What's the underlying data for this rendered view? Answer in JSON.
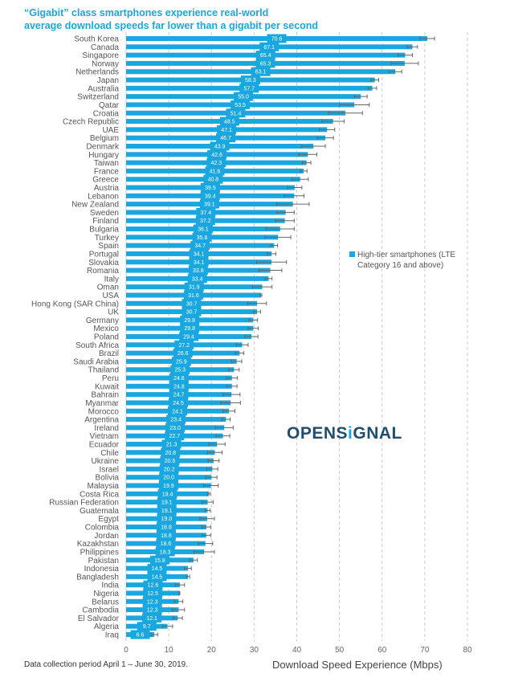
{
  "chart_data": {
    "type": "bar",
    "orientation": "horizontal",
    "title": "“Gigabit” class smartphones experience real-world average download speeds far lower than a gigabit per second",
    "title_lines": [
      "“Gigabit” class smartphones experience real-world",
      "average download speeds far lower than a gigabit per second"
    ],
    "xlabel": "Download Speed Experience (Mbps)",
    "xlim": [
      0,
      80
    ],
    "xticks": [
      0,
      10,
      20,
      30,
      40,
      50,
      60,
      70,
      80
    ],
    "grid": true,
    "legend": {
      "position": "right",
      "entries": [
        "High-tier smartphones (LTE Category 16 and above)"
      ],
      "lines": [
        "High-tier smartphones (LTE",
        "Category 16 and above)"
      ]
    },
    "series": [
      {
        "name": "High-tier smartphones (LTE Category 16 and above)",
        "color": "#1aa7e0"
      }
    ],
    "categories": [
      "South Korea",
      "Canada",
      "Singapore",
      "Norway",
      "Netherlands",
      "Japan",
      "Australia",
      "Switzerland",
      "Qatar",
      "Croatia",
      "Czech Republic",
      "UAE",
      "Belgium",
      "Denmark",
      "Hungary",
      "Taiwan",
      "France",
      "Greece",
      "Austria",
      "Lebanon",
      "New Zealand",
      "Sweden",
      "Finland",
      "Bulgaria",
      "Turkey",
      "Spain",
      "Portugal",
      "Slovakia",
      "Romania",
      "Italy",
      "Oman",
      "USA",
      "Hong Kong (SAR China)",
      "UK",
      "Germany",
      "Mexico",
      "Poland",
      "South Africa",
      "Brazil",
      "Saudi Arabia",
      "Thailand",
      "Peru",
      "Kuwait",
      "Bahrain",
      "Myanmar",
      "Morocco",
      "Argentina",
      "Ireland",
      "Vietnam",
      "Ecuador",
      "Chile",
      "Ukraine",
      "Israel",
      "Bolivia",
      "Malaysia",
      "Costa Rica",
      "Russian Federation",
      "Guatemala",
      "Egypt",
      "Colombia",
      "Jordan",
      "Kazakhstan",
      "Philippines",
      "Pakistan",
      "Indonesia",
      "Bangladesh",
      "India",
      "Nigeria",
      "Belarus",
      "Cambodia",
      "El Salvador",
      "Algeria",
      "Iraq"
    ],
    "values": [
      70.6,
      67.1,
      65.4,
      65.3,
      63.1,
      58.3,
      57.7,
      55.0,
      53.5,
      51.4,
      48.5,
      47.1,
      46.7,
      43.9,
      42.6,
      42.3,
      41.6,
      40.8,
      39.5,
      39.4,
      39.1,
      37.4,
      37.2,
      36.1,
      35.6,
      34.7,
      34.1,
      34.1,
      33.8,
      33.4,
      31.9,
      31.6,
      30.7,
      30.7,
      29.8,
      29.8,
      29.4,
      27.2,
      26.6,
      25.9,
      25.3,
      24.8,
      24.8,
      24.7,
      24.5,
      24.1,
      23.4,
      23.0,
      22.7,
      21.3,
      20.8,
      20.5,
      20.2,
      20.0,
      19.9,
      19.4,
      19.1,
      19.1,
      19.0,
      18.8,
      18.8,
      18.6,
      18.3,
      15.8,
      14.5,
      14.5,
      12.6,
      12.5,
      12.3,
      12.3,
      12.1,
      9.7,
      6.6
    ],
    "error_halfwidth": [
      1.7,
      1.2,
      1.7,
      3.2,
      1.5,
      0.9,
      1.0,
      1.5,
      3.5,
      4.0,
      2.6,
      1.8,
      1.9,
      2.8,
      2.1,
      1.0,
      0.8,
      1.9,
      1.7,
      2.3,
      3.8,
      2.0,
      2.2,
      3.3,
      3.0,
      0.8,
      1.0,
      3.5,
      2.7,
      0.8,
      2.3,
      0.2,
      2.2,
      0.8,
      1.0,
      1.2,
      1.5,
      1.4,
      1.0,
      1.2,
      1.2,
      1.3,
      1.2,
      2.0,
      2.3,
      1.4,
      1.0,
      2.1,
      1.6,
      1.9,
      1.7,
      1.3,
      1.3,
      1.3,
      1.7,
      0.3,
      1.3,
      0.6,
      1.7,
      1.0,
      1.0,
      1.7,
      2.4,
      0.9,
      0.8,
      0.4,
      1.1,
      0.1,
      1.0,
      1.4,
      1.1,
      1.2,
      0.8
    ]
  },
  "logo": "OPENSIGNAL",
  "footnote": "Data collection period April 1 – June 30, 2019."
}
